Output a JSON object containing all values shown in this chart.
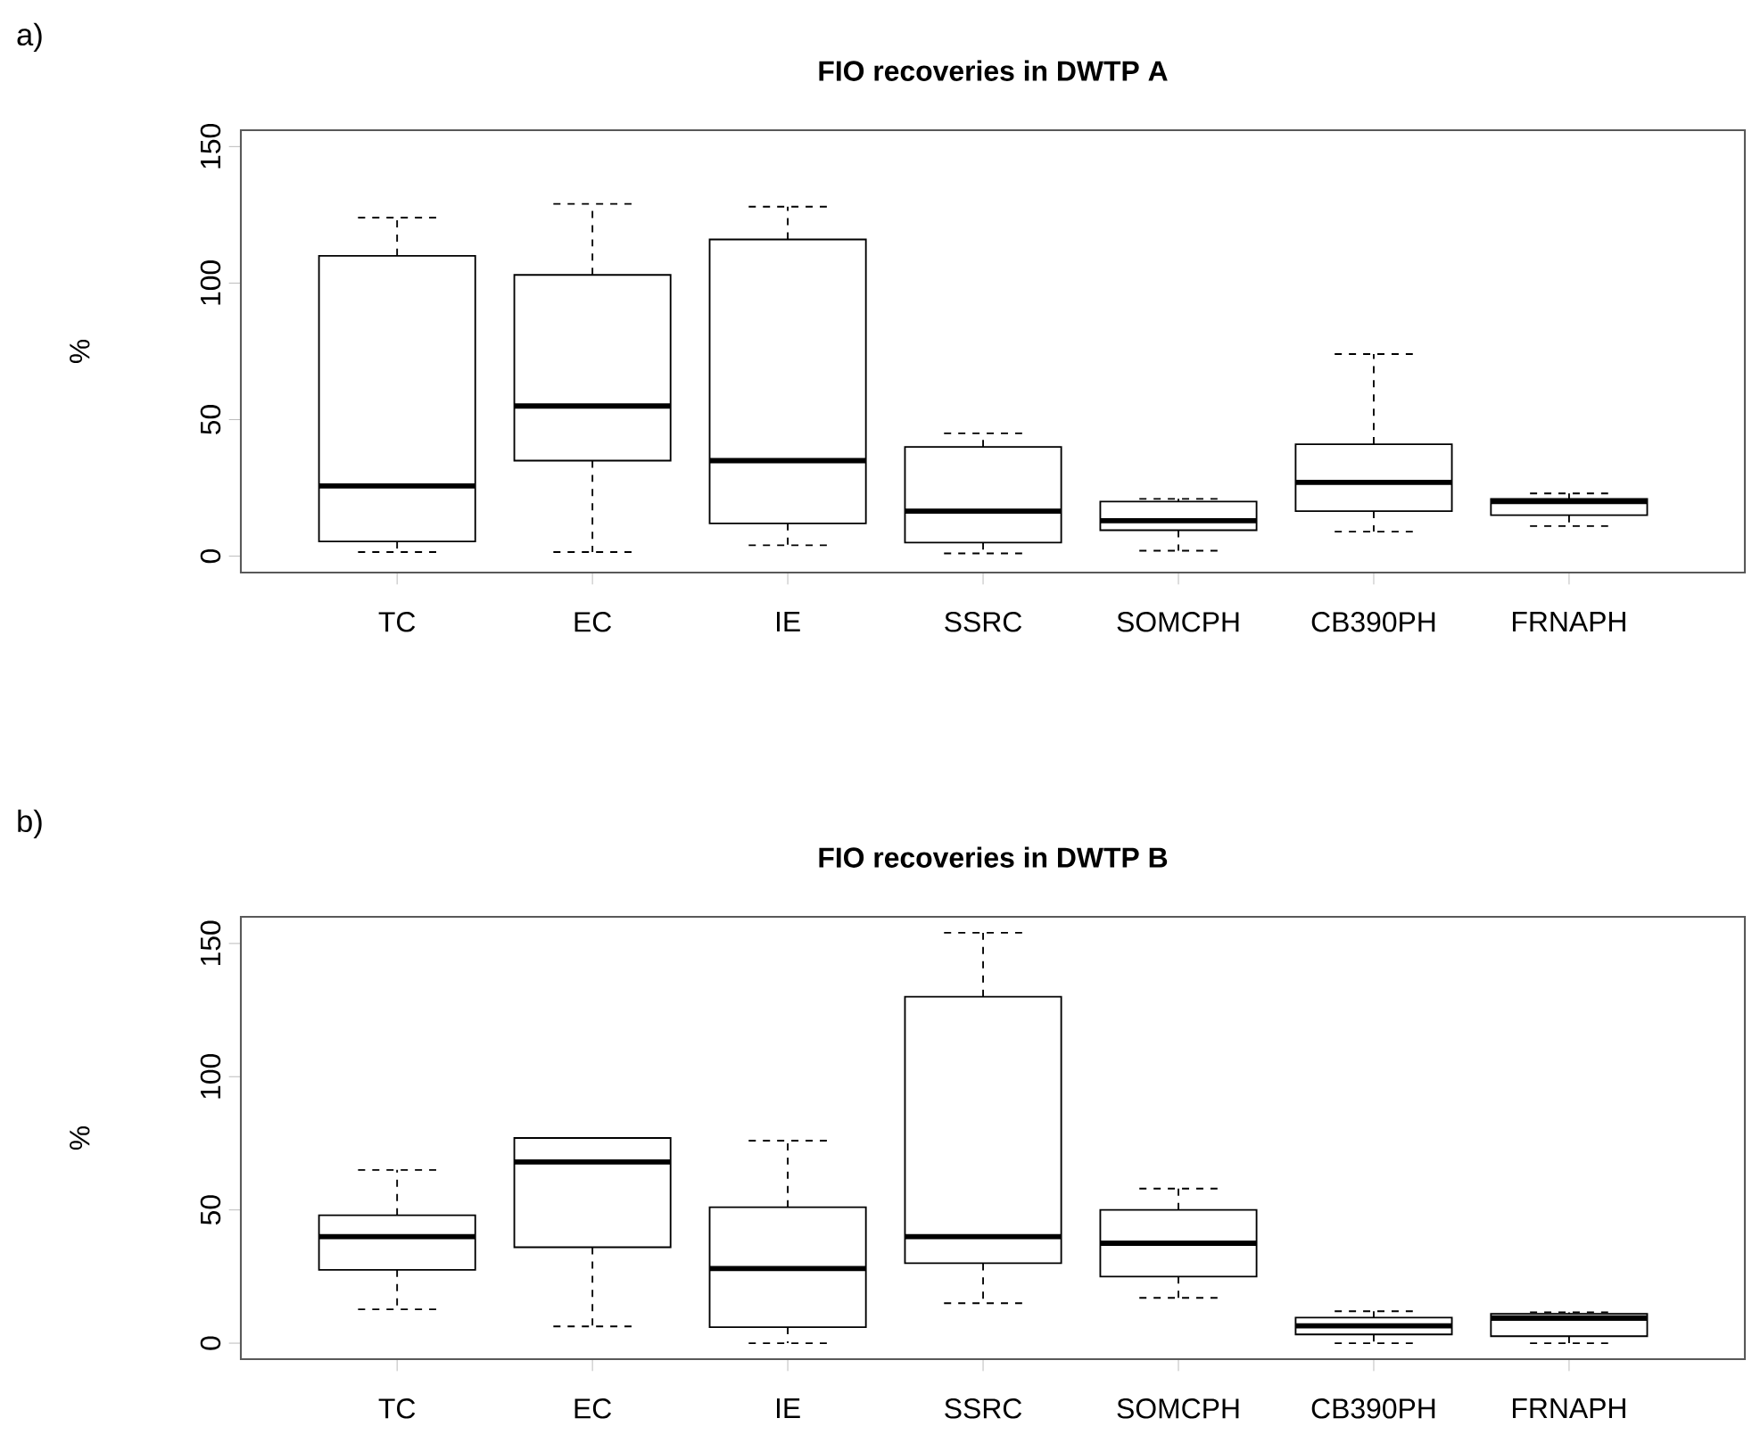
{
  "chart_data": [
    {
      "type": "box",
      "title": "FIO recoveries in DWTP A",
      "ylabel": "%",
      "annotations": [
        "a)"
      ],
      "categories": [
        "TC",
        "EC",
        "IE",
        "SSRC",
        "SOMCPH",
        "CB390PH",
        "FRNAPH"
      ],
      "boxes": [
        {
          "low": 1.5,
          "q1": 5.4,
          "median": 25.7,
          "q3": 110,
          "high": 124
        },
        {
          "low": 1.5,
          "q1": 35,
          "median": 55,
          "q3": 103,
          "high": 129
        },
        {
          "low": 4,
          "q1": 12,
          "median": 35,
          "q3": 116,
          "high": 128
        },
        {
          "low": 1,
          "q1": 5,
          "median": 16.5,
          "q3": 40,
          "high": 45
        },
        {
          "low": 2,
          "q1": 9.5,
          "median": 13,
          "q3": 20,
          "high": 21
        },
        {
          "low": 9,
          "q1": 16.5,
          "median": 27,
          "q3": 41,
          "high": 74
        },
        {
          "low": 11,
          "q1": 15,
          "median": 20,
          "q3": 21,
          "high": 23
        }
      ],
      "ylim": [
        -6,
        156
      ],
      "yticks": [
        0,
        50,
        100,
        150
      ]
    },
    {
      "type": "box",
      "title": "FIO recoveries in DWTP B",
      "ylabel": "%",
      "annotations": [
        "b)"
      ],
      "categories": [
        "TC",
        "EC",
        "IE",
        "SSRC",
        "SOMCPH",
        "CB390PH",
        "FRNAPH"
      ],
      "boxes": [
        {
          "low": 12.7,
          "q1": 27.5,
          "median": 40,
          "q3": 48,
          "high": 65
        },
        {
          "low": 6.3,
          "q1": 36,
          "median": 68,
          "q3": 77,
          "high": 77
        },
        {
          "low": 0,
          "q1": 6,
          "median": 28,
          "q3": 51,
          "high": 76
        },
        {
          "low": 15,
          "q1": 30,
          "median": 40,
          "q3": 130,
          "high": 154
        },
        {
          "low": 17,
          "q1": 25,
          "median": 37.5,
          "q3": 50,
          "high": 58
        },
        {
          "low": 0,
          "q1": 3.3,
          "median": 6.5,
          "q3": 9.6,
          "high": 12
        },
        {
          "low": 0,
          "q1": 2.6,
          "median": 9.4,
          "q3": 11,
          "high": 11.6
        }
      ],
      "ylim": [
        -6,
        160
      ],
      "yticks": [
        0,
        50,
        100,
        150
      ]
    }
  ]
}
